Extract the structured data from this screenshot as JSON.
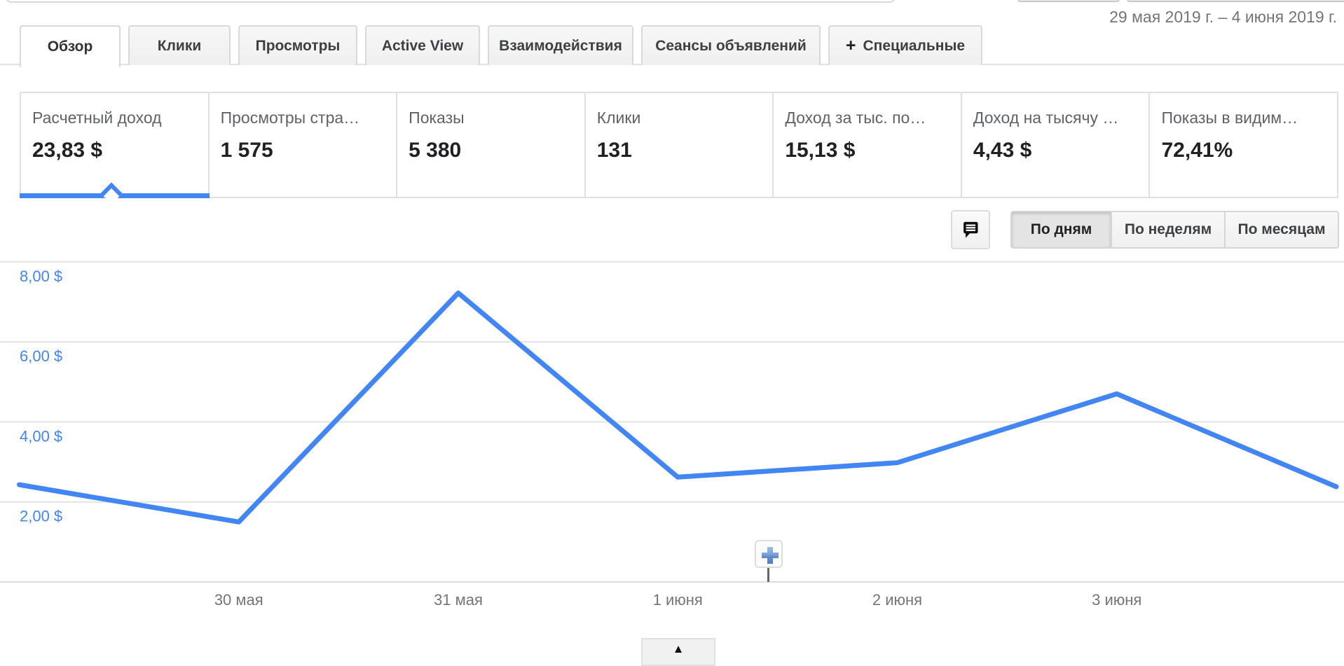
{
  "topbar": {
    "date_range": "29 мая 2019 г. – 4 июня 2019 г."
  },
  "tabs": [
    {
      "label": "Обзор",
      "active": true
    },
    {
      "label": "Клики"
    },
    {
      "label": "Просмотры"
    },
    {
      "label": "Active View"
    },
    {
      "label": "Взаимодействия"
    },
    {
      "label": "Сеансы объявлений"
    },
    {
      "label": "Специальные",
      "plus": "+",
      "icon": "plus-icon"
    }
  ],
  "metrics": [
    {
      "label": "Расчетный доход",
      "value": "23,83 $",
      "selected": true
    },
    {
      "label": "Просмотры стра…",
      "value": "1 575"
    },
    {
      "label": "Показы",
      "value": "5 380"
    },
    {
      "label": "Клики",
      "value": "131"
    },
    {
      "label": "Доход за тыс. по…",
      "value": "15,13 $"
    },
    {
      "label": "Доход на тысячу …",
      "value": "4,43 $"
    },
    {
      "label": "Показы в видим…",
      "value": "72,41%"
    }
  ],
  "toolbar": {
    "comment_button_icon": "comment-bubble-icon",
    "granularity": [
      {
        "label": "По дням",
        "selected": true
      },
      {
        "label": "По неделям"
      },
      {
        "label": "По месяцам"
      }
    ]
  },
  "chart_data": {
    "type": "line",
    "series_name": "Расчетный доход",
    "x": [
      "29 мая",
      "30 мая",
      "31 мая",
      "1 июня",
      "2 июня",
      "3 июня",
      "4 июня"
    ],
    "values": [
      2.43,
      1.5,
      7.22,
      2.62,
      2.98,
      4.7,
      2.38
    ],
    "x_tick_labels": [
      "30 мая",
      "31 мая",
      "1 июня",
      "2 июня",
      "3 июня"
    ],
    "y_ticks": [
      {
        "value": 2,
        "label": "2,00 $"
      },
      {
        "value": 4,
        "label": "4,00 $"
      },
      {
        "value": 6,
        "label": "6,00 $"
      },
      {
        "value": 8,
        "label": "8,00 $"
      }
    ],
    "ylim": [
      0,
      9.1
    ],
    "grid": true,
    "legend": "none",
    "line_color": "#4285f4",
    "axis_label_color": "#4285f4",
    "tick_label_color": "#757575",
    "annotation_button_icon": "plus-icon"
  },
  "footer": {
    "collapse_icon": "▲"
  }
}
